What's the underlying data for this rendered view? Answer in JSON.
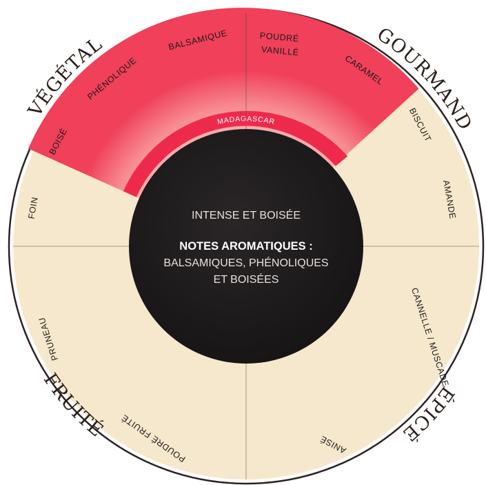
{
  "families": [
    {
      "id": "vegetal",
      "label": "VÉGÉTAL"
    },
    {
      "id": "gourmand",
      "label": "GOURMAND"
    },
    {
      "id": "epice",
      "label": "ÉPICÉ"
    },
    {
      "id": "fruite",
      "label": "FRUITÉ"
    }
  ],
  "notes": {
    "boise": "BOISÉ",
    "phenolique": "PHÉNOLIQUE",
    "balsamique": "BALSAMIQUE",
    "poudre_vanille_1": "POUDRÉ",
    "poudre_vanille_2": "VANILLÉ",
    "caramel": "CARAMEL",
    "biscuit": "BISCUIT",
    "amande": "AMANDE",
    "cannelle": "CANNELLE / MUSCADE",
    "anise": "ANISÉ",
    "poudre_fruite": "POUDRÉ FRUITÉ",
    "pruneau": "PRUNEAU",
    "foin": "FOIN"
  },
  "origin": {
    "label": "MADAGASCAR"
  },
  "center": {
    "intensity": "INTENSE ET BOISÉE",
    "heading": "NOTES AROMATIQUES :",
    "line1": "BALSAMIQUES, PHÉNOLIQUES",
    "line2": "ET BOISÉES"
  },
  "colors": {
    "cream": "#f6e8cc",
    "highlight_inner": "#f8d3c9",
    "highlight_outer": "#f2445c",
    "band": "#ee2a4c",
    "center": "#1a1718",
    "rim": "#2c2220"
  }
}
